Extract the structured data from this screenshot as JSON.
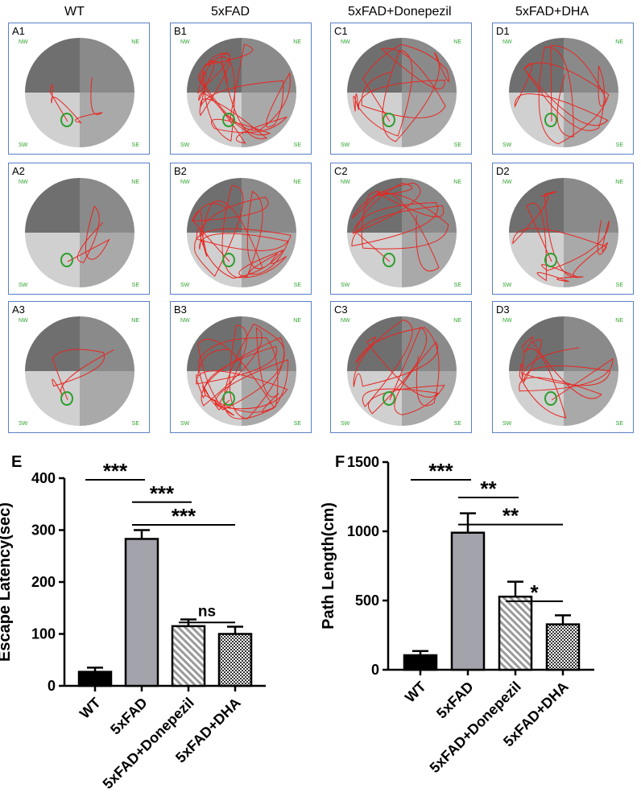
{
  "columns": [
    "WT",
    "5xFAD",
    "5xFAD+Donepezil",
    "5xFAD+DHA"
  ],
  "compass": {
    "nw": "NW",
    "ne": "NE",
    "sw": "SW",
    "se": "SE"
  },
  "panel_ids": [
    [
      "A1",
      "B1",
      "C1",
      "D1"
    ],
    [
      "A2",
      "B2",
      "C2",
      "D2"
    ],
    [
      "A3",
      "B3",
      "C3",
      "D3"
    ]
  ],
  "colors": {
    "q_nw": "#6f6f6f",
    "q_ne": "#8a8a8a",
    "q_sw": "#d0d0d0",
    "q_se": "#a9a9a9",
    "path": "#e8251f",
    "target": "#2f9e2f",
    "panel_border": "#5b7fc7",
    "bar_wt": "#000000",
    "bar_5xfad": "#a3a3ab"
  },
  "chart_data": [
    {
      "type": "bar",
      "panel_label": "E",
      "categories": [
        "WT",
        "5xFAD",
        "5xFAD+Donepezil",
        "5xFAD+DHA"
      ],
      "values": [
        27,
        283,
        115,
        100
      ],
      "errors": [
        8,
        17,
        13,
        14
      ],
      "fills": [
        "solid-black",
        "solid-gray",
        "diagonal-hatch",
        "checker"
      ],
      "ylabel": "Escape Latency(sec)",
      "ylim": [
        0,
        400
      ],
      "yticks": [
        0,
        100,
        200,
        300,
        400
      ],
      "significance": [
        {
          "from": 0,
          "to": 1,
          "label": "***"
        },
        {
          "from": 1,
          "to": 2,
          "label": "***"
        },
        {
          "from": 1,
          "to": 3,
          "label": "***"
        },
        {
          "from": 2,
          "to": 3,
          "label": "ns"
        }
      ]
    },
    {
      "type": "bar",
      "panel_label": "F",
      "categories": [
        "WT",
        "5xFAD",
        "5xFAD+Donepezil",
        "5xFAD+DHA"
      ],
      "values": [
        105,
        990,
        528,
        328
      ],
      "errors": [
        30,
        140,
        108,
        65
      ],
      "fills": [
        "solid-black",
        "solid-gray",
        "diagonal-hatch",
        "checker"
      ],
      "ylabel": "Path  Length(cm)",
      "ylim": [
        0,
        1500
      ],
      "yticks": [
        0,
        500,
        1000,
        1500
      ],
      "significance": [
        {
          "from": 0,
          "to": 1,
          "label": "***"
        },
        {
          "from": 1,
          "to": 2,
          "label": "**"
        },
        {
          "from": 1,
          "to": 3,
          "label": "**"
        },
        {
          "from": 2,
          "to": 3,
          "label": "*"
        }
      ]
    }
  ]
}
